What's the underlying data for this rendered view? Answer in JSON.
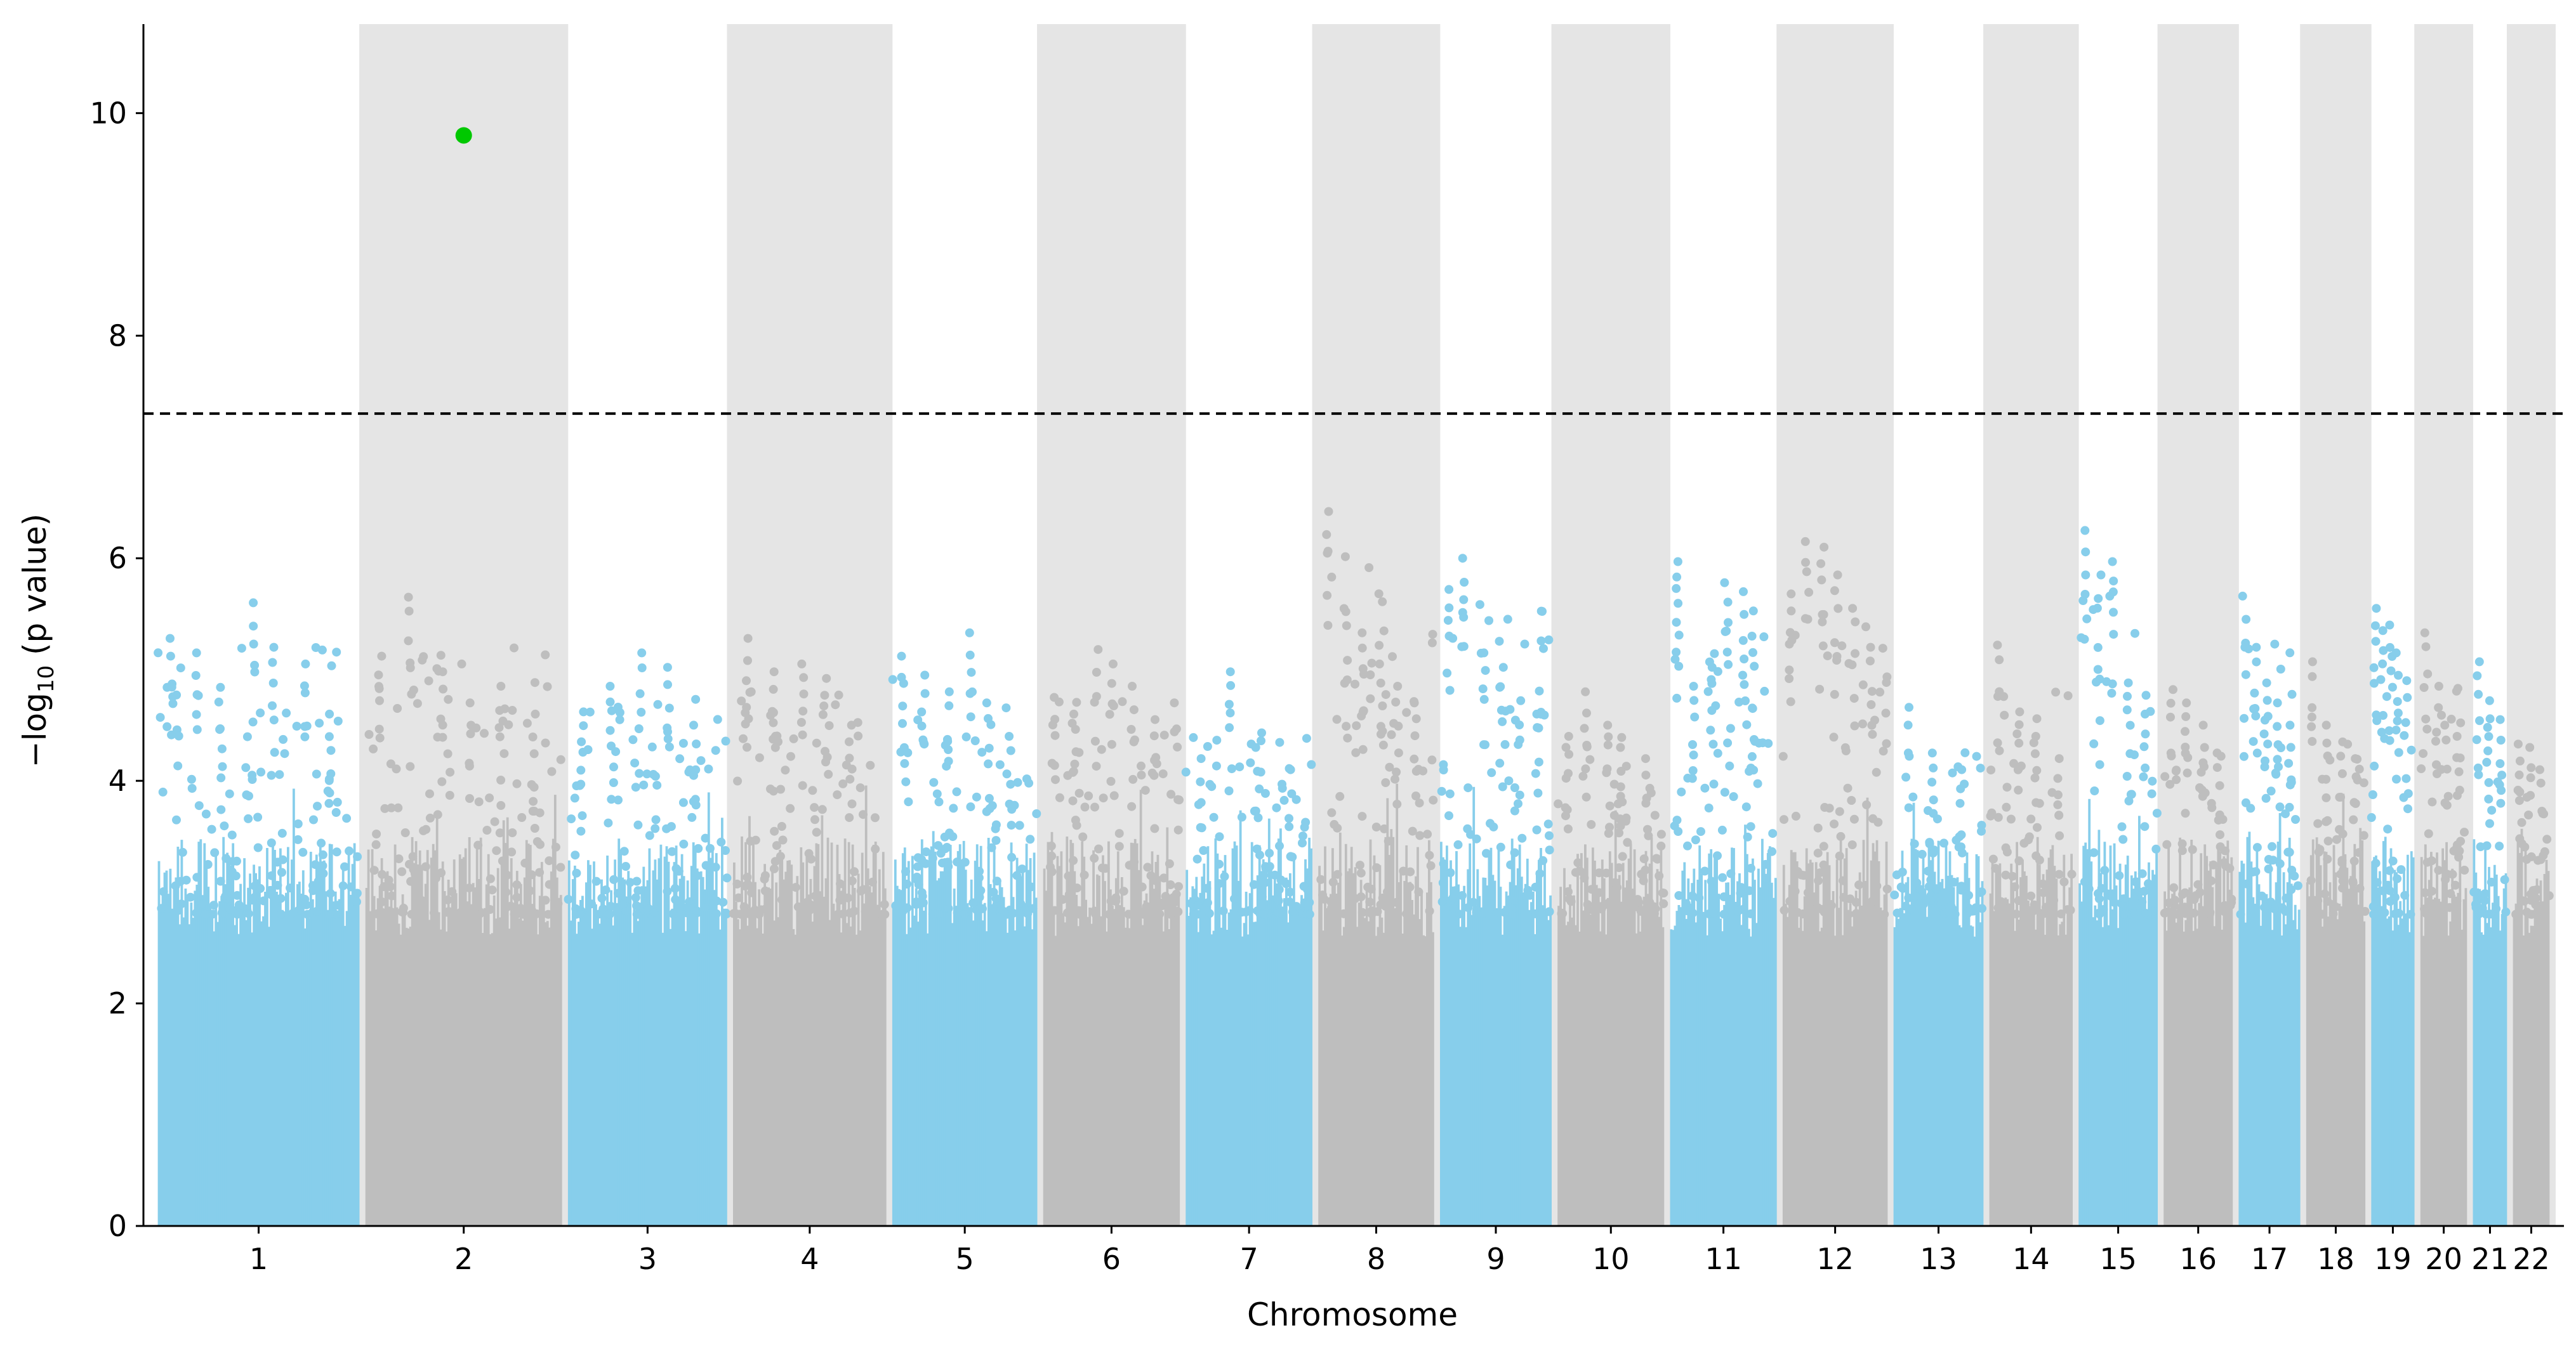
{
  "chart_data": {
    "type": "scatter",
    "subtype": "manhattan",
    "title": "",
    "xlabel": "Chromosome",
    "ylabel": "−log",
    "ylabel_sub": "10",
    "ylabel_tail": " (p value)",
    "ylim": [
      0,
      10.8
    ],
    "yticks": [
      0,
      2,
      4,
      6,
      8,
      10
    ],
    "grid": false,
    "legend": "none",
    "significance_threshold": 7.3,
    "colors": {
      "odd_chromosome": "#87ceeb",
      "even_chromosome": "#bebebe",
      "shade_band": "#e5e5e5",
      "highlight": "#00c800",
      "threshold_line": "#000000"
    },
    "chromosomes": [
      {
        "label": "1",
        "length": 249,
        "max": 5.6,
        "top": [
          5.28,
          5.15,
          4.84,
          5.6,
          5.2,
          5.05,
          4.6
        ]
      },
      {
        "label": "2",
        "length": 243,
        "max": 5.65,
        "top": [
          5.12,
          5.65,
          4.98,
          4.7,
          4.85,
          4.6
        ]
      },
      {
        "label": "3",
        "length": 198,
        "max": 5.15,
        "top": [
          4.62,
          4.85,
          5.15,
          5.02,
          4.5
        ]
      },
      {
        "label": "4",
        "length": 191,
        "max": 5.28,
        "top": [
          5.28,
          4.98,
          5.05,
          4.92,
          4.5
        ]
      },
      {
        "label": "5",
        "length": 181,
        "max": 5.33,
        "top": [
          5.12,
          4.95,
          4.8,
          5.33,
          4.7,
          4.4
        ]
      },
      {
        "label": "6",
        "length": 171,
        "max": 5.18,
        "top": [
          4.75,
          4.6,
          5.18,
          5.05,
          4.85,
          4.55
        ]
      },
      {
        "label": "7",
        "length": 159,
        "max": 4.98,
        "top": [
          4.2,
          4.98,
          4.3,
          4.1
        ]
      },
      {
        "label": "8",
        "length": 146,
        "max": 6.42,
        "top": [
          6.42,
          5.52,
          5.33,
          5.05,
          4.85,
          4.7
        ]
      },
      {
        "label": "9",
        "length": 141,
        "max": 6.0,
        "top": [
          5.72,
          6.0,
          5.15,
          5.02,
          4.72,
          4.6
        ]
      },
      {
        "label": "10",
        "length": 135,
        "max": 4.8,
        "top": [
          4.4,
          4.8,
          4.5,
          4.3,
          4.2
        ]
      },
      {
        "label": "11",
        "length": 135,
        "max": 5.97,
        "top": [
          5.97,
          4.85,
          5.02,
          5.78,
          5.7,
          5.3
        ]
      },
      {
        "label": "12",
        "length": 133,
        "max": 6.15,
        "top": [
          5.68,
          6.15,
          6.1,
          5.85,
          5.55,
          5.2
        ]
      },
      {
        "label": "13",
        "length": 115,
        "max": 4.66,
        "top": [
          4.66,
          4.25,
          4.1
        ]
      },
      {
        "label": "14",
        "length": 107,
        "max": 5.22,
        "top": [
          5.22,
          4.62,
          4.4,
          4.2
        ]
      },
      {
        "label": "15",
        "length": 102,
        "max": 6.25,
        "top": [
          6.25,
          5.85,
          5.97,
          4.88,
          4.6
        ]
      },
      {
        "label": "16",
        "length": 90,
        "max": 4.82,
        "top": [
          4.82,
          4.7,
          4.5,
          4.25
        ]
      },
      {
        "label": "17",
        "length": 81,
        "max": 5.66,
        "top": [
          5.66,
          5.2,
          4.88,
          4.7,
          4.5
        ]
      },
      {
        "label": "18",
        "length": 78,
        "max": 5.07,
        "top": [
          5.07,
          4.5,
          4.35,
          4.2
        ]
      },
      {
        "label": "19",
        "length": 59,
        "max": 5.55,
        "top": [
          5.55,
          5.35,
          5.4,
          5.15,
          4.9
        ]
      },
      {
        "label": "20",
        "length": 63,
        "max": 5.33,
        "top": [
          5.33,
          4.85,
          4.5,
          4.4
        ]
      },
      {
        "label": "21",
        "length": 48,
        "max": 5.07,
        "top": [
          5.07,
          4.72,
          4.55
        ]
      },
      {
        "label": "22",
        "length": 51,
        "max": 4.33,
        "top": [
          4.33,
          4.3,
          4.1
        ]
      }
    ],
    "highlight_point": {
      "chromosome": "2",
      "position": 0.5,
      "y": 9.8
    }
  }
}
